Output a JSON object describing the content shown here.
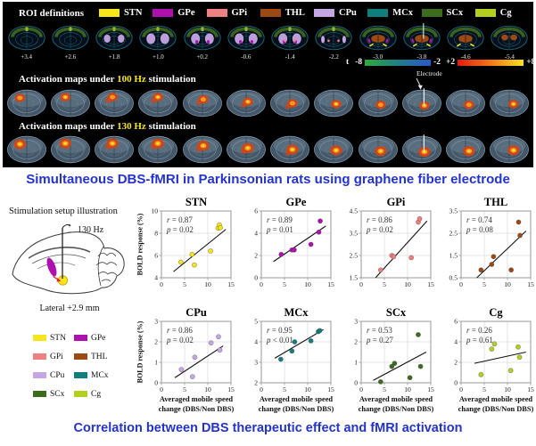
{
  "top_panel": {
    "roi_title": "ROI definitions",
    "rois": [
      {
        "label": "STN",
        "color": "#f5e51a"
      },
      {
        "label": "GPe",
        "color": "#ae10b0"
      },
      {
        "label": "GPi",
        "color": "#ef8080"
      },
      {
        "label": "THL",
        "color": "#9c4a12"
      },
      {
        "label": "CPu",
        "color": "#c7a6e6"
      },
      {
        "label": "MCx",
        "color": "#0f7f7d"
      },
      {
        "label": "SCx",
        "color": "#3e6c1e"
      },
      {
        "label": "Cg",
        "color": "#b3d01f"
      }
    ],
    "slice_labels": [
      "+3.4",
      "+2.6",
      "+1.8",
      "+1.0",
      "+0.2",
      "-0.6",
      "-1.4",
      "-2.2",
      "-3.0",
      "-3.8",
      "-4.6",
      "-5.4"
    ],
    "colorbar": {
      "t_label": "t",
      "neg_min": "-8",
      "neg_max": "-2",
      "pos_min": "+2",
      "pos_max": "+8",
      "neg_gradient": [
        "#2faa3a",
        "#1f7f86",
        "#2b57c8"
      ],
      "pos_gradient": [
        "#e6190f",
        "#f07818",
        "#f8e11e"
      ]
    },
    "row_100": {
      "prefix": "Activation maps under",
      "hz": "100 Hz",
      "suffix": "stimulation"
    },
    "row_130": {
      "prefix": "Activation maps under",
      "hz": "130 Hz",
      "suffix": "stimulation"
    },
    "electrode_label": "Electrode"
  },
  "captions": {
    "top": "Simultaneous DBS-fMRI in Parkinsonian rats using graphene fiber electrode",
    "bottom": "Correlation between DBS therapeutic effect and fMRI activation",
    "color": "#2433cc"
  },
  "setup": {
    "title": "Stimulation setup illustration",
    "freq": "130 Hz",
    "plus": "+",
    "minus": "−",
    "lateral": "Lateral +2.9 mm"
  },
  "chart_data": {
    "type": "scatter",
    "xlabel_lines": [
      "Averaged mobile speed",
      "change (DBS/Non DBS)"
    ],
    "ylabel": "BOLD response (%)",
    "xlim": [
      0,
      15
    ],
    "xticks": [
      "0",
      "5",
      "10",
      "15"
    ],
    "grid": true,
    "stat_labels": {
      "r": "r",
      "p": "p"
    },
    "plots": [
      {
        "title": "STN",
        "color": "#f5e51a",
        "r": "0.87",
        "r_op": "=",
        "p": "0.02",
        "p_op": "=",
        "ylim": [
          4,
          10
        ],
        "yticks": [
          "4",
          "6",
          "8",
          "10"
        ],
        "points": [
          [
            4.2,
            5.4
          ],
          [
            6.6,
            6.1
          ],
          [
            7.1,
            5.15
          ],
          [
            10.6,
            6.4
          ],
          [
            12.2,
            8.45
          ],
          [
            12.5,
            8.75
          ],
          [
            12.7,
            8.5
          ]
        ],
        "trend": [
          [
            2.6,
            4.55
          ],
          [
            13.9,
            8.35
          ]
        ]
      },
      {
        "title": "GPe",
        "color": "#ae10b0",
        "r": "0.89",
        "r_op": "=",
        "p": "0.01",
        "p_op": "=",
        "ylim": [
          0,
          6
        ],
        "yticks": [
          "0",
          "2",
          "4",
          "6"
        ],
        "points": [
          [
            4.3,
            2.1
          ],
          [
            6.6,
            2.5
          ],
          [
            7.1,
            2.5
          ],
          [
            10.7,
            3.0
          ],
          [
            12.4,
            4.1
          ],
          [
            12.7,
            5.1
          ]
        ],
        "trend": [
          [
            2.6,
            1.45
          ],
          [
            13.9,
            4.65
          ]
        ]
      },
      {
        "title": "GPi",
        "color": "#ef8080",
        "r": "0.86",
        "r_op": "=",
        "p": "0.02",
        "p_op": "=",
        "ylim": [
          1.5,
          4.5
        ],
        "yticks": [
          "1.5",
          "2.5",
          "3.5",
          "4.5"
        ],
        "points": [
          [
            4.2,
            1.85
          ],
          [
            6.6,
            2.5
          ],
          [
            7.0,
            2.45
          ],
          [
            10.8,
            2.4
          ],
          [
            12.3,
            4.0
          ],
          [
            12.6,
            4.15
          ]
        ],
        "trend": [
          [
            3.1,
            1.5
          ],
          [
            14.2,
            4.05
          ]
        ]
      },
      {
        "title": "THL",
        "color": "#9c4a12",
        "r": "0.74",
        "r_op": "=",
        "p": "0.08",
        "p_op": "=",
        "ylim": [
          0.5,
          3.5
        ],
        "yticks": [
          "0.5",
          "1.5",
          "2.5",
          "3.5"
        ],
        "points": [
          [
            4.3,
            0.85
          ],
          [
            6.6,
            1.1
          ],
          [
            7.0,
            1.45
          ],
          [
            10.8,
            0.85
          ],
          [
            12.4,
            3.0
          ],
          [
            12.7,
            2.4
          ]
        ],
        "trend": [
          [
            3.4,
            0.5
          ],
          [
            14.0,
            2.6
          ]
        ]
      },
      {
        "title": "CPu",
        "color": "#c7a6e6",
        "r": "0.86",
        "r_op": "=",
        "p": "0.02",
        "p_op": "=",
        "ylim": [
          0,
          3
        ],
        "yticks": [
          "0",
          "1",
          "2",
          "3"
        ],
        "points": [
          [
            4.3,
            0.65
          ],
          [
            6.7,
            0.3
          ],
          [
            7.2,
            1.25
          ],
          [
            10.7,
            1.95
          ],
          [
            12.3,
            2.25
          ],
          [
            12.6,
            1.6
          ]
        ],
        "trend": [
          [
            2.9,
            0.25
          ],
          [
            13.3,
            1.8
          ]
        ]
      },
      {
        "title": "MCx",
        "color": "#0f7f7d",
        "r": "0.95",
        "r_op": "=",
        "p": "0.01",
        "p_op": "<",
        "ylim": [
          2,
          5
        ],
        "yticks": [
          "2",
          "3",
          "4",
          "5"
        ],
        "points": [
          [
            4.2,
            3.15
          ],
          [
            6.6,
            3.55
          ],
          [
            7.2,
            4.0
          ],
          [
            10.7,
            4.05
          ],
          [
            12.3,
            4.5
          ],
          [
            12.6,
            4.55
          ]
        ],
        "trend": [
          [
            2.9,
            3.2
          ],
          [
            13.4,
            4.6
          ]
        ]
      },
      {
        "title": "SCx",
        "color": "#3e6c1e",
        "r": "0.53",
        "r_op": "=",
        "p": "0.27",
        "p_op": "=",
        "ylim": [
          0,
          3
        ],
        "yticks": [
          "0",
          "1",
          "2",
          "3"
        ],
        "points": [
          [
            4.2,
            0.05
          ],
          [
            6.6,
            0.8
          ],
          [
            7.2,
            0.95
          ],
          [
            10.5,
            0.25
          ],
          [
            12.3,
            2.35
          ],
          [
            12.8,
            0.8
          ]
        ],
        "trend": [
          [
            2.6,
            0.12
          ],
          [
            14.0,
            1.5
          ]
        ]
      },
      {
        "title": "Cg",
        "color": "#b3d01f",
        "r": "0.26",
        "r_op": "=",
        "p": "0.61",
        "p_op": "=",
        "ylim": [
          0,
          6
        ],
        "yticks": [
          "0",
          "2",
          "4",
          "6"
        ],
        "points": [
          [
            4.3,
            0.8
          ],
          [
            6.6,
            3.3
          ],
          [
            7.2,
            3.8
          ],
          [
            10.7,
            1.2
          ],
          [
            12.3,
            3.5
          ],
          [
            12.6,
            2.5
          ]
        ],
        "trend": [
          [
            2.9,
            1.9
          ],
          [
            14.0,
            3.0
          ]
        ]
      }
    ]
  }
}
